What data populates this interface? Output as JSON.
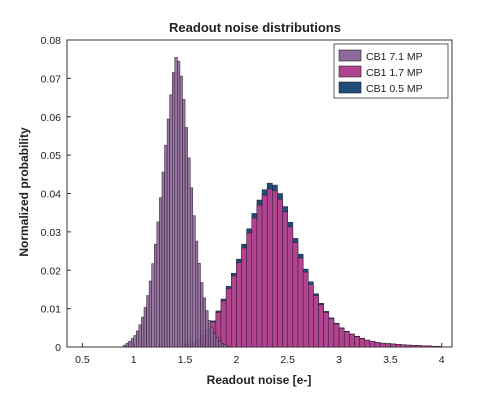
{
  "chart_data": {
    "type": "bar",
    "title": "Readout noise distributions",
    "xlabel": "Readout noise [e-]",
    "ylabel": "Normalized probability",
    "xlim": [
      0.35,
      4.1
    ],
    "ylim": [
      0,
      0.08
    ],
    "xticks": [
      "0.5",
      "1",
      "1.5",
      "2",
      "2.5",
      "3",
      "3.5",
      "4"
    ],
    "xtick_values": [
      0.5,
      1,
      1.5,
      2,
      2.5,
      3,
      3.5,
      4
    ],
    "yticks": [
      "0",
      "0.01",
      "0.02",
      "0.03",
      "0.04",
      "0.05",
      "0.06",
      "0.07",
      "0.08"
    ],
    "ytick_values": [
      0,
      0.01,
      0.02,
      0.03,
      0.04,
      0.05,
      0.06,
      0.07,
      0.08
    ],
    "bin_width": 0.025,
    "grid": false,
    "legend_position": "top-right",
    "series": [
      {
        "name": "CB1 7.1 MP",
        "color": "#8e6a9a",
        "values": [
          [
            0.9,
            0.0005
          ],
          [
            0.925,
            0.001
          ],
          [
            0.95,
            0.0015
          ],
          [
            0.975,
            0.0022
          ],
          [
            1.0,
            0.003
          ],
          [
            1.025,
            0.0042
          ],
          [
            1.05,
            0.0058
          ],
          [
            1.075,
            0.0078
          ],
          [
            1.1,
            0.0103
          ],
          [
            1.125,
            0.0134
          ],
          [
            1.15,
            0.0172
          ],
          [
            1.175,
            0.0217
          ],
          [
            1.2,
            0.0268
          ],
          [
            1.225,
            0.0326
          ],
          [
            1.25,
            0.0389
          ],
          [
            1.275,
            0.0456
          ],
          [
            1.3,
            0.0526
          ],
          [
            1.325,
            0.0594
          ],
          [
            1.35,
            0.0657
          ],
          [
            1.375,
            0.0715
          ],
          [
            1.4,
            0.0755
          ],
          [
            1.425,
            0.0745
          ],
          [
            1.45,
            0.0706
          ],
          [
            1.475,
            0.0645
          ],
          [
            1.5,
            0.0572
          ],
          [
            1.525,
            0.0493
          ],
          [
            1.55,
            0.0415
          ],
          [
            1.575,
            0.0342
          ],
          [
            1.6,
            0.0276
          ],
          [
            1.625,
            0.0218
          ],
          [
            1.65,
            0.0168
          ],
          [
            1.675,
            0.0128
          ],
          [
            1.7,
            0.0095
          ],
          [
            1.725,
            0.0069
          ],
          [
            1.75,
            0.005
          ],
          [
            1.775,
            0.0035
          ],
          [
            1.8,
            0.0024
          ],
          [
            1.825,
            0.0016
          ],
          [
            1.85,
            0.001
          ],
          [
            1.875,
            0.0006
          ],
          [
            1.9,
            0.0004
          ]
        ]
      },
      {
        "name": "CB1 1.7 MP",
        "color": "#b2448f",
        "values": [
          [
            1.5,
            0.0005
          ],
          [
            1.55,
            0.001
          ],
          [
            1.6,
            0.0018
          ],
          [
            1.65,
            0.003
          ],
          [
            1.7,
            0.0045
          ],
          [
            1.75,
            0.0065
          ],
          [
            1.8,
            0.009
          ],
          [
            1.85,
            0.012
          ],
          [
            1.9,
            0.0152
          ],
          [
            1.95,
            0.0185
          ],
          [
            2.0,
            0.022
          ],
          [
            2.05,
            0.0258
          ],
          [
            2.1,
            0.0297
          ],
          [
            2.15,
            0.0336
          ],
          [
            2.2,
            0.037
          ],
          [
            2.25,
            0.0396
          ],
          [
            2.3,
            0.0412
          ],
          [
            2.35,
            0.0407
          ],
          [
            2.4,
            0.0385
          ],
          [
            2.45,
            0.0352
          ],
          [
            2.5,
            0.0313
          ],
          [
            2.55,
            0.0272
          ],
          [
            2.6,
            0.0232
          ],
          [
            2.65,
            0.0195
          ],
          [
            2.7,
            0.0163
          ],
          [
            2.75,
            0.0134
          ],
          [
            2.8,
            0.011
          ],
          [
            2.85,
            0.009
          ],
          [
            2.9,
            0.0074
          ],
          [
            2.95,
            0.006
          ],
          [
            3.0,
            0.0049
          ],
          [
            3.05,
            0.004
          ],
          [
            3.1,
            0.0033
          ],
          [
            3.15,
            0.0027
          ],
          [
            3.2,
            0.0022
          ],
          [
            3.25,
            0.0018
          ],
          [
            3.3,
            0.0015
          ],
          [
            3.35,
            0.0012
          ],
          [
            3.4,
            0.001
          ],
          [
            3.45,
            0.0009
          ],
          [
            3.5,
            0.0008
          ],
          [
            3.55,
            0.0007
          ],
          [
            3.6,
            0.0006
          ],
          [
            3.65,
            0.0005
          ],
          [
            3.7,
            0.0004
          ],
          [
            3.75,
            0.0004
          ],
          [
            3.8,
            0.0003
          ],
          [
            3.85,
            0.0003
          ],
          [
            3.9,
            0.0002
          ],
          [
            3.95,
            0.0002
          ]
        ]
      },
      {
        "name": "CB1 0.5 MP",
        "color": "#1f4e79",
        "values": [
          [
            1.5,
            0.0006
          ],
          [
            1.55,
            0.0011
          ],
          [
            1.6,
            0.0019
          ],
          [
            1.65,
            0.0031
          ],
          [
            1.7,
            0.0047
          ],
          [
            1.75,
            0.0068
          ],
          [
            1.8,
            0.0094
          ],
          [
            1.85,
            0.0125
          ],
          [
            1.9,
            0.0158
          ],
          [
            1.95,
            0.0192
          ],
          [
            2.0,
            0.0229
          ],
          [
            2.05,
            0.0268
          ],
          [
            2.1,
            0.0308
          ],
          [
            2.15,
            0.0348
          ],
          [
            2.2,
            0.0383
          ],
          [
            2.25,
            0.041
          ],
          [
            2.3,
            0.0427
          ],
          [
            2.35,
            0.0422
          ],
          [
            2.4,
            0.04
          ],
          [
            2.45,
            0.0366
          ],
          [
            2.5,
            0.0325
          ],
          [
            2.55,
            0.0283
          ],
          [
            2.6,
            0.0242
          ],
          [
            2.65,
            0.0203
          ],
          [
            2.7,
            0.017
          ],
          [
            2.75,
            0.0139
          ],
          [
            2.8,
            0.0114
          ],
          [
            2.85,
            0.0093
          ],
          [
            2.9,
            0.0076
          ],
          [
            2.95,
            0.0062
          ],
          [
            3.0,
            0.005
          ],
          [
            3.05,
            0.0041
          ],
          [
            3.1,
            0.0034
          ],
          [
            3.15,
            0.0028
          ],
          [
            3.2,
            0.0023
          ],
          [
            3.25,
            0.0018
          ],
          [
            3.3,
            0.0015
          ],
          [
            3.35,
            0.0012
          ],
          [
            3.4,
            0.001
          ],
          [
            3.45,
            0.0009
          ],
          [
            3.5,
            0.0008
          ],
          [
            3.55,
            0.0007
          ],
          [
            3.6,
            0.0006
          ],
          [
            3.65,
            0.0005
          ],
          [
            3.7,
            0.0004
          ],
          [
            3.75,
            0.0004
          ],
          [
            3.8,
            0.0003
          ],
          [
            3.85,
            0.0003
          ],
          [
            3.9,
            0.0002
          ],
          [
            3.95,
            0.0002
          ]
        ]
      }
    ]
  }
}
